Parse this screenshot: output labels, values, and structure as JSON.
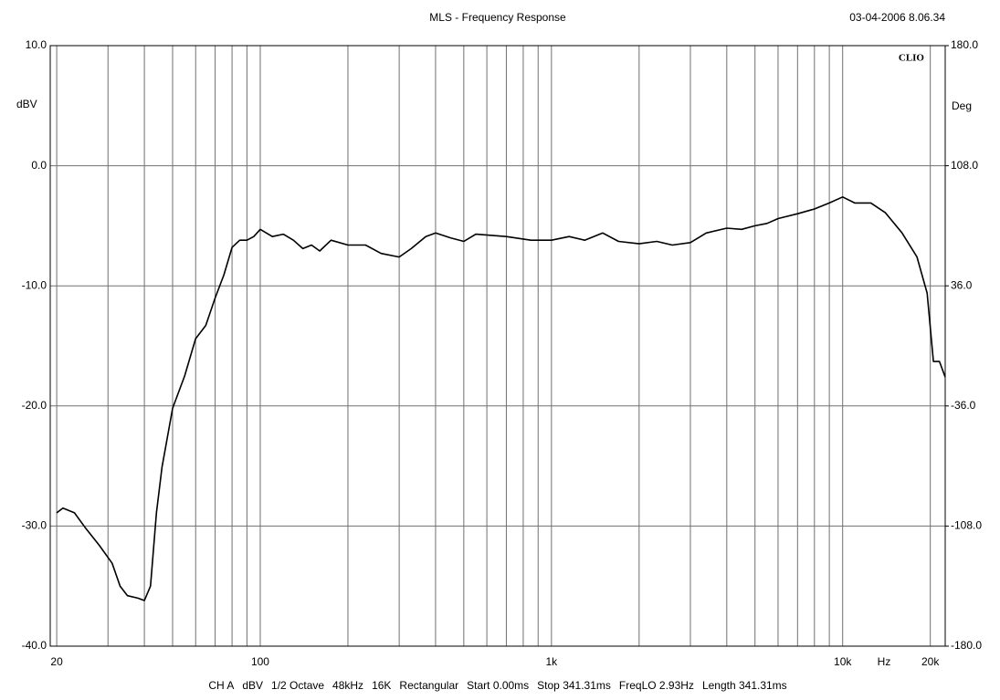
{
  "chart_data": {
    "type": "line",
    "title": "MLS - Frequency Response",
    "timestamp": "03-04-2006 8.06.34",
    "logo": "CLIO",
    "ylabel": "dBV",
    "y2label": "Deg",
    "xunit": "Hz",
    "footer": [
      "CH A",
      "dBV",
      "1/2 Octave",
      "48kHz",
      "16K",
      "Rectangular",
      "Start 0.00ms",
      "Stop 341.31ms",
      "FreqLO 2.93Hz",
      "Length 341.31ms"
    ],
    "xscale": "log",
    "grid": true,
    "xlim": [
      19,
      22500
    ],
    "xticks": [
      20,
      100,
      {
        "value": 1000,
        "label": "1k"
      },
      {
        "value": 10000,
        "label": "10k"
      },
      {
        "value": 20000,
        "label": "20k"
      }
    ],
    "xminor": [
      30,
      40,
      50,
      60,
      70,
      80,
      90,
      200,
      300,
      400,
      500,
      600,
      700,
      800,
      900,
      2000,
      3000,
      4000,
      5000,
      6000,
      7000,
      8000,
      9000
    ],
    "ylim": [
      -40,
      10
    ],
    "yticks": [
      {
        "value": 10,
        "label": "10.0"
      },
      {
        "value": 0,
        "label": "0.0"
      },
      {
        "value": -10,
        "label": "-10.0"
      },
      {
        "value": -20,
        "label": "-20.0"
      },
      {
        "value": -30,
        "label": "-30.0"
      },
      {
        "value": -40,
        "label": "-40.0"
      }
    ],
    "y2lim": [
      -180,
      180
    ],
    "y2ticks": [
      {
        "value": 180,
        "label": "180.0"
      },
      {
        "value": 108,
        "label": "108.0"
      },
      {
        "value": 36,
        "label": "36.0"
      },
      {
        "value": -36,
        "label": "-36.0"
      },
      {
        "value": -108,
        "label": "-108.0"
      },
      {
        "value": -180,
        "label": "-180.0"
      }
    ],
    "x": [
      20,
      21,
      23,
      25,
      28,
      31,
      33,
      35,
      38,
      40,
      42,
      44,
      46,
      50,
      55,
      60,
      65,
      70,
      75,
      80,
      85,
      90,
      95,
      100,
      110,
      120,
      130,
      140,
      150,
      160,
      175,
      200,
      230,
      260,
      300,
      330,
      370,
      400,
      450,
      500,
      550,
      700,
      850,
      1000,
      1150,
      1300,
      1500,
      1700,
      2000,
      2300,
      2600,
      3000,
      3400,
      4000,
      4500,
      5000,
      5500,
      6000,
      7000,
      8000,
      9000,
      10000,
      11000,
      12500,
      14000,
      16000,
      18000,
      19500,
      20500,
      21500,
      22500
    ],
    "series": [
      {
        "color": "#000000",
        "values": [
          -28.9,
          -28.5,
          -28.9,
          -30.1,
          -31.6,
          -33.1,
          -35,
          -35.8,
          -36,
          -36.2,
          -35,
          -28.9,
          -25.1,
          -20.2,
          -17.5,
          -14.4,
          -13.3,
          -11,
          -9.1,
          -6.8,
          -6.2,
          -6.2,
          -5.9,
          -5.3,
          -5.9,
          -5.7,
          -6.2,
          -6.9,
          -6.6,
          -7.1,
          -6.2,
          -6.6,
          -6.6,
          -7.3,
          -7.6,
          -6.9,
          -5.9,
          -5.6,
          -6.0,
          -6.3,
          -5.7,
          -5.9,
          -6.2,
          -6.2,
          -5.9,
          -6.2,
          -5.6,
          -6.3,
          -6.5,
          -6.3,
          -6.6,
          -6.4,
          -5.6,
          -5.2,
          -5.3,
          -5,
          -4.8,
          -4.4,
          -4,
          -3.6,
          -3.1,
          -2.6,
          -3.1,
          -3.1,
          -3.9,
          -5.6,
          -7.6,
          -10.6,
          -16.3,
          -16.3,
          -17.6
        ]
      }
    ]
  }
}
